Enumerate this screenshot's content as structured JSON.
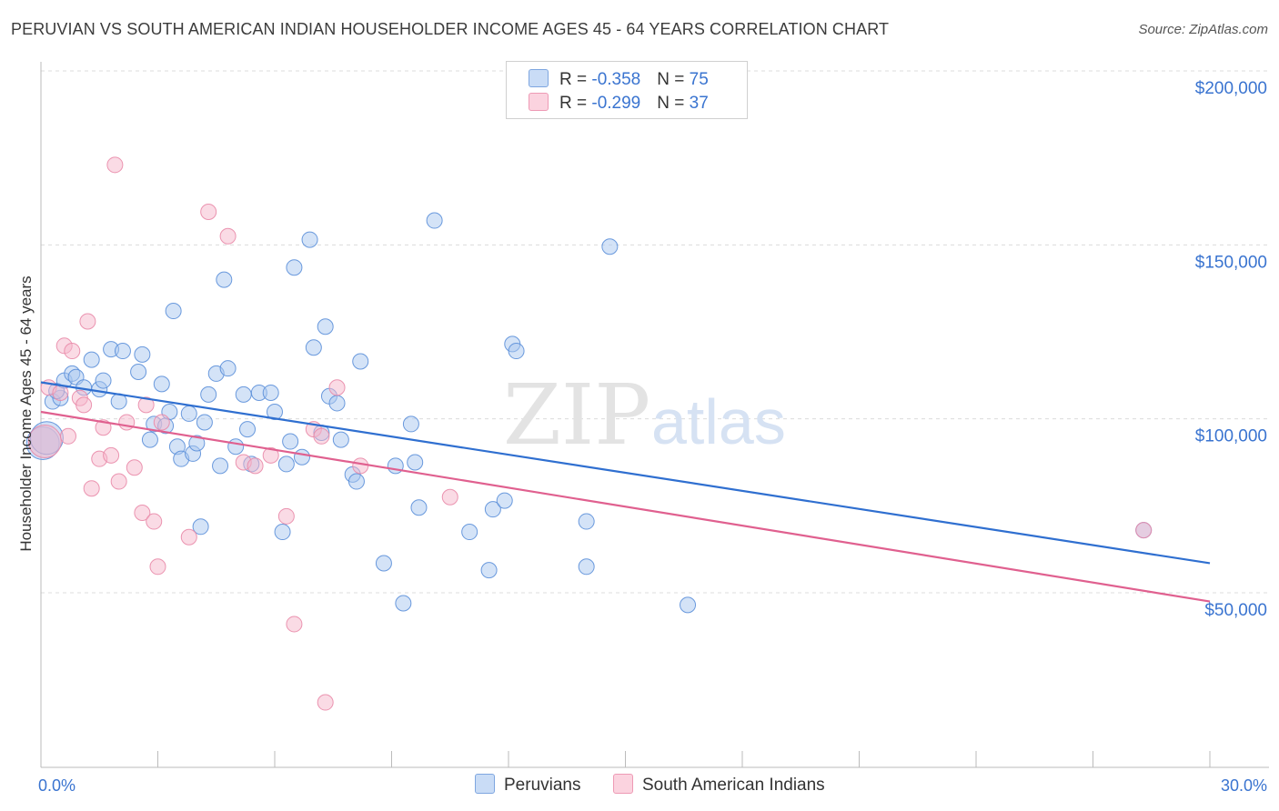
{
  "title": "PERUVIAN VS SOUTH AMERICAN INDIAN HOUSEHOLDER INCOME AGES 45 - 64 YEARS CORRELATION CHART",
  "source": "Source: ZipAtlas.com",
  "watermark": {
    "part1": "ZIP",
    "part2": "atlas"
  },
  "legend": {
    "rows": [
      {
        "r_label": "R = ",
        "r_value": "-0.358",
        "n_label": "N = ",
        "n_value": "75",
        "color": "#a9c7f0"
      },
      {
        "r_label": "R = ",
        "r_value": "-0.299",
        "n_label": "N = ",
        "n_value": "37",
        "color": "#f6b8cb"
      }
    ]
  },
  "bottom_legend": [
    {
      "label": "Peruvians",
      "color": "#a9c7f0"
    },
    {
      "label": "South American Indians",
      "color": "#f6b8cb"
    }
  ],
  "chart_data": {
    "type": "scatter",
    "title": "PERUVIAN VS SOUTH AMERICAN INDIAN HOUSEHOLDER INCOME AGES 45 - 64 YEARS CORRELATION CHART",
    "xlabel": "",
    "ylabel": "Householder Income Ages 45 - 64 years",
    "xlim": [
      0,
      30
    ],
    "ylim": [
      0,
      205000
    ],
    "x_tick_labels": [
      "0.0%",
      "30.0%"
    ],
    "y_ticks": [
      50000,
      100000,
      150000,
      200000
    ],
    "y_tick_labels": [
      "$50,000",
      "$100,000",
      "$150,000",
      "$200,000"
    ],
    "grid": true,
    "series": [
      {
        "name": "Peruvians",
        "color": "#5b8fd9",
        "fill": "#a9c7f0",
        "trend": {
          "x": [
            0,
            30
          ],
          "y": [
            110500,
            58500
          ],
          "color": "#2f6fd0"
        },
        "points": [
          [
            0.3,
            105000
          ],
          [
            0.5,
            106000
          ],
          [
            0.4,
            108000
          ],
          [
            0.6,
            111000
          ],
          [
            0.8,
            113000
          ],
          [
            0.9,
            112000
          ],
          [
            1.1,
            109000
          ],
          [
            1.3,
            117000
          ],
          [
            1.5,
            108500
          ],
          [
            1.6,
            111000
          ],
          [
            1.8,
            120000
          ],
          [
            2.0,
            105000
          ],
          [
            2.1,
            119500
          ],
          [
            2.5,
            113500
          ],
          [
            2.6,
            118500
          ],
          [
            2.8,
            94000
          ],
          [
            2.9,
            98500
          ],
          [
            3.1,
            110000
          ],
          [
            3.3,
            102000
          ],
          [
            3.2,
            98000
          ],
          [
            3.4,
            131000
          ],
          [
            3.5,
            92000
          ],
          [
            3.6,
            88500
          ],
          [
            3.8,
            101500
          ],
          [
            3.9,
            90000
          ],
          [
            4.0,
            93000
          ],
          [
            4.1,
            69000
          ],
          [
            4.2,
            99000
          ],
          [
            4.3,
            107000
          ],
          [
            4.5,
            113000
          ],
          [
            4.6,
            86500
          ],
          [
            4.7,
            140000
          ],
          [
            4.8,
            114500
          ],
          [
            5.0,
            92000
          ],
          [
            5.2,
            107000
          ],
          [
            5.3,
            97000
          ],
          [
            5.4,
            87000
          ],
          [
            5.6,
            107500
          ],
          [
            5.9,
            107500
          ],
          [
            6.0,
            102000
          ],
          [
            6.2,
            67500
          ],
          [
            6.3,
            87000
          ],
          [
            6.4,
            93500
          ],
          [
            6.5,
            143500
          ],
          [
            6.7,
            89000
          ],
          [
            6.9,
            151500
          ],
          [
            7.0,
            120500
          ],
          [
            7.2,
            96000
          ],
          [
            7.3,
            126500
          ],
          [
            7.4,
            106500
          ],
          [
            7.6,
            104500
          ],
          [
            7.7,
            94000
          ],
          [
            8.0,
            84000
          ],
          [
            8.1,
            82000
          ],
          [
            8.2,
            116500
          ],
          [
            8.8,
            58500
          ],
          [
            9.1,
            86500
          ],
          [
            9.3,
            47000
          ],
          [
            9.5,
            98500
          ],
          [
            9.6,
            87500
          ],
          [
            9.7,
            74500
          ],
          [
            10.1,
            157000
          ],
          [
            11.0,
            67500
          ],
          [
            11.5,
            56500
          ],
          [
            11.6,
            74000
          ],
          [
            11.9,
            76500
          ],
          [
            12.1,
            121500
          ],
          [
            12.2,
            119500
          ],
          [
            14.0,
            70500
          ],
          [
            14.0,
            57500
          ],
          [
            14.6,
            149500
          ],
          [
            16.6,
            46500
          ],
          [
            28.3,
            68000
          ],
          [
            0.05,
            93000
          ],
          [
            0.15,
            94500
          ]
        ]
      },
      {
        "name": "South American Indians",
        "color": "#e98aa8",
        "fill": "#f6b8cb",
        "trend": {
          "x": [
            0,
            30
          ],
          "y": [
            102000,
            47500
          ],
          "color": "#e0608f"
        },
        "points": [
          [
            0.1,
            93500
          ],
          [
            0.2,
            109000
          ],
          [
            0.5,
            107500
          ],
          [
            0.6,
            121000
          ],
          [
            0.7,
            95000
          ],
          [
            0.8,
            119500
          ],
          [
            1.0,
            106000
          ],
          [
            1.1,
            104000
          ],
          [
            1.2,
            128000
          ],
          [
            1.3,
            80000
          ],
          [
            1.5,
            88500
          ],
          [
            1.6,
            97500
          ],
          [
            1.8,
            89500
          ],
          [
            1.9,
            173000
          ],
          [
            2.0,
            82000
          ],
          [
            2.2,
            99000
          ],
          [
            2.4,
            86000
          ],
          [
            2.6,
            73000
          ],
          [
            2.7,
            104000
          ],
          [
            2.9,
            70500
          ],
          [
            3.0,
            57500
          ],
          [
            3.1,
            99000
          ],
          [
            3.8,
            66000
          ],
          [
            4.3,
            159500
          ],
          [
            4.8,
            152500
          ],
          [
            5.2,
            87500
          ],
          [
            5.5,
            86500
          ],
          [
            5.9,
            89500
          ],
          [
            6.3,
            72000
          ],
          [
            6.5,
            41000
          ],
          [
            7.0,
            97000
          ],
          [
            7.2,
            95000
          ],
          [
            7.3,
            18500
          ],
          [
            7.6,
            109000
          ],
          [
            8.2,
            86500
          ],
          [
            10.5,
            77500
          ],
          [
            28.3,
            68000
          ]
        ]
      }
    ]
  }
}
